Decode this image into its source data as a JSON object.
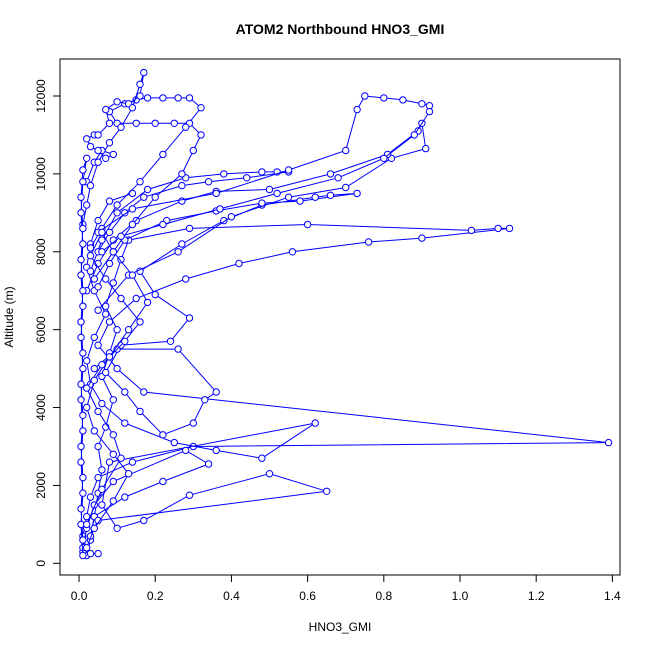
{
  "chart_data": {
    "type": "scatter",
    "title": "ATOM2 Northbound HNO3_GMI",
    "xlabel": "HNO3_GMI",
    "ylabel": "Altitude (m)",
    "xlim": [
      -0.05,
      1.42
    ],
    "ylim": [
      -300,
      12950
    ],
    "xticks": [
      0.0,
      0.2,
      0.4,
      0.6,
      0.8,
      1.0,
      1.2,
      1.4
    ],
    "xtick_labels": [
      "0.0",
      "0.2",
      "0.4",
      "0.6",
      "0.8",
      "1.0",
      "1.2",
      "1.4"
    ],
    "yticks": [
      0,
      2000,
      4000,
      6000,
      8000,
      10000,
      12000
    ],
    "ytick_labels": [
      "0",
      "2000",
      "4000",
      "6000",
      "8000",
      "10000",
      "12000"
    ],
    "grid": false,
    "marker": "open-circle",
    "connected": true,
    "color": "#0000ff",
    "series": [
      {
        "points": [
          [
            0.02,
            200
          ],
          [
            0.03,
            600
          ],
          [
            0.04,
            1200
          ],
          [
            0.05,
            1800
          ],
          [
            0.06,
            2400
          ],
          [
            0.05,
            3000
          ],
          [
            0.07,
            3500
          ],
          [
            0.09,
            4200
          ],
          [
            0.06,
            4800
          ],
          [
            0.08,
            5400
          ],
          [
            0.1,
            6000
          ],
          [
            0.07,
            6600
          ],
          [
            0.09,
            7200
          ],
          [
            0.11,
            7800
          ],
          [
            0.13,
            8300
          ],
          [
            0.29,
            8600
          ],
          [
            0.6,
            8700
          ],
          [
            1.03,
            8550
          ],
          [
            1.1,
            8600
          ],
          [
            1.13,
            8600
          ],
          [
            0.9,
            8350
          ],
          [
            0.76,
            8250
          ],
          [
            0.56,
            8000
          ],
          [
            0.42,
            7700
          ],
          [
            0.28,
            7300
          ],
          [
            0.15,
            6800
          ],
          [
            0.08,
            6200
          ],
          [
            0.05,
            5600
          ],
          [
            0.1,
            5000
          ],
          [
            0.17,
            4400
          ],
          [
            1.39,
            3100
          ],
          [
            0.3,
            3000
          ],
          [
            0.14,
            2600
          ],
          [
            0.05,
            2200
          ],
          [
            0.03,
            1700
          ],
          [
            0.02,
            1200
          ],
          [
            0.01,
            700
          ],
          [
            0.01,
            300
          ]
        ]
      },
      {
        "points": [
          [
            0.01,
            400
          ],
          [
            0.02,
            900
          ],
          [
            0.04,
            1500
          ],
          [
            0.09,
            2100
          ],
          [
            0.28,
            2900
          ],
          [
            0.34,
            2550
          ],
          [
            0.22,
            2100
          ],
          [
            0.12,
            1700
          ],
          [
            0.04,
            1200
          ],
          [
            0.03,
            700
          ],
          [
            0.05,
            1100
          ],
          [
            0.65,
            1850
          ],
          [
            0.5,
            2300
          ],
          [
            0.29,
            1750
          ],
          [
            0.17,
            1100
          ],
          [
            0.1,
            900
          ],
          [
            0.06,
            1500
          ],
          [
            0.08,
            2600
          ],
          [
            0.62,
            3600
          ],
          [
            0.48,
            2700
          ],
          [
            0.36,
            2900
          ],
          [
            0.25,
            3100
          ],
          [
            0.12,
            3600
          ],
          [
            0.06,
            4100
          ],
          [
            0.03,
            4600
          ],
          [
            0.02,
            5200
          ],
          [
            0.04,
            5800
          ],
          [
            0.07,
            6400
          ],
          [
            0.04,
            7000
          ],
          [
            0.02,
            7600
          ],
          [
            0.03,
            8200
          ],
          [
            0.05,
            8800
          ],
          [
            0.08,
            9300
          ],
          [
            0.14,
            9500
          ]
        ]
      },
      {
        "points": [
          [
            0.04,
            5000
          ],
          [
            0.1,
            5500
          ],
          [
            0.26,
            5500
          ],
          [
            0.36,
            4400
          ],
          [
            0.33,
            4200
          ],
          [
            0.3,
            3600
          ],
          [
            0.22,
            3300
          ],
          [
            0.16,
            3900
          ],
          [
            0.12,
            4400
          ],
          [
            0.07,
            4900
          ],
          [
            0.11,
            5600
          ],
          [
            0.24,
            5700
          ],
          [
            0.29,
            6300
          ],
          [
            0.2,
            6900
          ],
          [
            0.16,
            7500
          ],
          [
            0.27,
            8200
          ],
          [
            0.38,
            8800
          ],
          [
            0.48,
            9200
          ],
          [
            0.62,
            9400
          ],
          [
            0.66,
            9450
          ],
          [
            0.73,
            9500
          ],
          [
            0.58,
            9300
          ],
          [
            0.48,
            9250
          ],
          [
            0.36,
            9050
          ],
          [
            0.23,
            8800
          ],
          [
            0.12,
            8300
          ],
          [
            0.08,
            7700
          ],
          [
            0.05,
            7100
          ]
        ]
      },
      {
        "points": [
          [
            0.05,
            6500
          ],
          [
            0.13,
            7400
          ],
          [
            0.26,
            8000
          ],
          [
            0.4,
            8900
          ],
          [
            0.55,
            9400
          ],
          [
            0.7,
            9650
          ],
          [
            0.82,
            10400
          ],
          [
            0.91,
            10650
          ],
          [
            0.9,
            11300
          ],
          [
            0.89,
            11100
          ],
          [
            0.81,
            10500
          ],
          [
            0.66,
            10000
          ],
          [
            0.5,
            9600
          ],
          [
            0.36,
            9550
          ],
          [
            0.27,
            9300
          ],
          [
            0.15,
            8800
          ],
          [
            0.09,
            8300
          ],
          [
            0.05,
            7700
          ],
          [
            0.02,
            7000
          ]
        ]
      },
      {
        "points": [
          [
            0.03,
            7500
          ],
          [
            0.06,
            8300
          ],
          [
            0.1,
            9000
          ],
          [
            0.18,
            9600
          ],
          [
            0.28,
            9900
          ],
          [
            0.38,
            10000
          ],
          [
            0.48,
            10050
          ],
          [
            0.52,
            10050
          ],
          [
            0.55,
            10050
          ],
          [
            0.44,
            9900
          ],
          [
            0.34,
            9800
          ],
          [
            0.27,
            9700
          ],
          [
            0.17,
            9400
          ],
          [
            0.12,
            9000
          ],
          [
            0.08,
            8500
          ],
          [
            0.05,
            8000
          ]
        ]
      },
      {
        "points": [
          [
            0.04,
            7300
          ],
          [
            0.09,
            8000
          ],
          [
            0.14,
            8700
          ],
          [
            0.2,
            9400
          ],
          [
            0.27,
            10000
          ],
          [
            0.3,
            10600
          ],
          [
            0.32,
            11000
          ],
          [
            0.29,
            11300
          ],
          [
            0.25,
            11300
          ],
          [
            0.2,
            11300
          ],
          [
            0.15,
            11300
          ],
          [
            0.1,
            11300
          ],
          [
            0.08,
            11600
          ],
          [
            0.12,
            11800
          ],
          [
            0.15,
            11900
          ],
          [
            0.18,
            11950
          ],
          [
            0.22,
            11950
          ],
          [
            0.26,
            11950
          ],
          [
            0.29,
            11950
          ],
          [
            0.32,
            11700
          ],
          [
            0.28,
            11200
          ],
          [
            0.22,
            10500
          ],
          [
            0.16,
            9800
          ],
          [
            0.1,
            9200
          ],
          [
            0.06,
            8600
          ],
          [
            0.03,
            8100
          ]
        ]
      },
      {
        "points": [
          [
            0.05,
            8500
          ],
          [
            0.14,
            9100
          ],
          [
            0.36,
            9500
          ],
          [
            0.55,
            10100
          ],
          [
            0.7,
            10600
          ],
          [
            0.73,
            11650
          ],
          [
            0.75,
            12000
          ],
          [
            0.8,
            11950
          ],
          [
            0.85,
            11900
          ],
          [
            0.9,
            11800
          ],
          [
            0.92,
            11750
          ],
          [
            0.92,
            11600
          ],
          [
            0.88,
            11000
          ],
          [
            0.8,
            10400
          ],
          [
            0.68,
            9900
          ],
          [
            0.52,
            9500
          ],
          [
            0.37,
            9100
          ],
          [
            0.22,
            8700
          ],
          [
            0.11,
            8400
          ],
          [
            0.06,
            8000
          ]
        ]
      },
      {
        "points": [
          [
            0.02,
            9800
          ],
          [
            0.04,
            10300
          ],
          [
            0.06,
            10600
          ],
          [
            0.09,
            10500
          ],
          [
            0.07,
            10400
          ],
          [
            0.05,
            10600
          ],
          [
            0.03,
            10700
          ],
          [
            0.02,
            10900
          ],
          [
            0.04,
            11000
          ],
          [
            0.05,
            11000
          ],
          [
            0.08,
            11300
          ],
          [
            0.07,
            11650
          ],
          [
            0.1,
            11850
          ],
          [
            0.13,
            11800
          ],
          [
            0.16,
            12000
          ],
          [
            0.17,
            12600
          ],
          [
            0.16,
            12300
          ],
          [
            0.14,
            11700
          ],
          [
            0.11,
            11200
          ],
          [
            0.08,
            10800
          ],
          [
            0.05,
            10300
          ],
          [
            0.03,
            9700
          ],
          [
            0.02,
            9200
          ],
          [
            0.01,
            8700
          ]
        ]
      },
      {
        "points": [
          [
            0.01,
            200
          ],
          [
            0.005,
            1000
          ],
          [
            0.01,
            1800
          ],
          [
            0.005,
            2600
          ],
          [
            0.01,
            3400
          ],
          [
            0.005,
            4200
          ],
          [
            0.01,
            5000
          ],
          [
            0.005,
            5800
          ],
          [
            0.01,
            6600
          ],
          [
            0.005,
            7400
          ],
          [
            0.01,
            8200
          ],
          [
            0.005,
            9000
          ],
          [
            0.01,
            9800
          ],
          [
            0.02,
            10400
          ],
          [
            0.01,
            10100
          ],
          [
            0.005,
            9400
          ],
          [
            0.01,
            8600
          ],
          [
            0.005,
            7800
          ],
          [
            0.01,
            7000
          ],
          [
            0.005,
            6200
          ],
          [
            0.01,
            5400
          ],
          [
            0.005,
            4600
          ],
          [
            0.01,
            3800
          ],
          [
            0.005,
            3000
          ],
          [
            0.01,
            2200
          ],
          [
            0.005,
            1400
          ],
          [
            0.01,
            600
          ],
          [
            0.03,
            250
          ],
          [
            0.05,
            250
          ]
        ]
      },
      {
        "points": [
          [
            0.02,
            1000
          ],
          [
            0.06,
            1900
          ],
          [
            0.11,
            2700
          ],
          [
            0.09,
            3300
          ],
          [
            0.05,
            3900
          ],
          [
            0.02,
            4500
          ],
          [
            0.06,
            5100
          ],
          [
            0.12,
            5700
          ],
          [
            0.16,
            6200
          ],
          [
            0.11,
            6800
          ],
          [
            0.07,
            7300
          ],
          [
            0.03,
            7900
          ],
          [
            0.06,
            8500
          ],
          [
            0.09,
            8000
          ],
          [
            0.14,
            7400
          ],
          [
            0.18,
            6700
          ],
          [
            0.13,
            6000
          ],
          [
            0.08,
            5300
          ],
          [
            0.04,
            4700
          ],
          [
            0.02,
            4000
          ],
          [
            0.04,
            3400
          ],
          [
            0.09,
            2800
          ],
          [
            0.13,
            2300
          ],
          [
            0.09,
            1600
          ],
          [
            0.04,
            900
          ],
          [
            0.02,
            400
          ]
        ]
      }
    ]
  }
}
